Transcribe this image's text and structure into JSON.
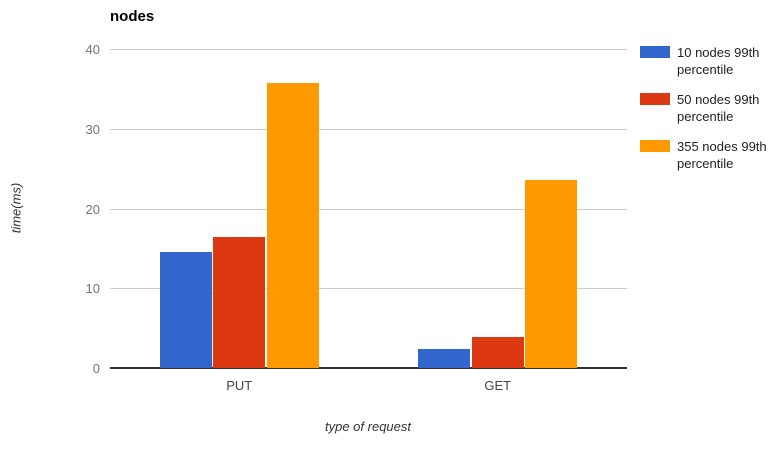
{
  "title": "nodes",
  "chart_data": {
    "type": "bar",
    "title": "nodes",
    "xlabel": "type of request",
    "ylabel": "time(ms)",
    "categories": [
      "PUT",
      "GET"
    ],
    "series": [
      {
        "name": "10 nodes 99th percentile",
        "color": "#3366CC",
        "values": [
          14.5,
          2.4
        ]
      },
      {
        "name": "50 nodes 99th percentile",
        "color": "#DC3912",
        "values": [
          16.4,
          3.9
        ]
      },
      {
        "name": "355 nodes 99th percentile",
        "color": "#FF9900",
        "values": [
          35.8,
          23.6
        ]
      }
    ],
    "ylim": [
      0,
      40
    ],
    "yticks": [
      0,
      10,
      20,
      30,
      40
    ],
    "grid": true,
    "legend_position": "right",
    "gridline_color": "#cccccc",
    "baseline_color": "#333333",
    "tick_label_color": "#757575",
    "background_color": "#ffffff"
  }
}
